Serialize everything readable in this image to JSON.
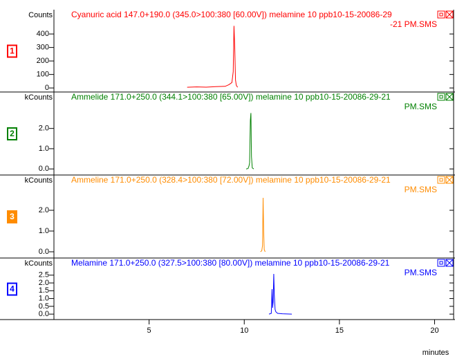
{
  "chart_data": [
    {
      "type": "line",
      "panel": "1",
      "title": [
        "Cyanuric acid 147.0+190.0 (345.0>100:380 [60.00V]) melamine 10 ppb10-15-20086-29",
        "-21 PM.SMS"
      ],
      "ylabel": "Counts",
      "xlim": [
        0,
        21
      ],
      "ylim": [
        -30,
        580
      ],
      "yticks": [
        0,
        100,
        200,
        300,
        400
      ],
      "series": [
        {
          "color": "#ff0000",
          "x": [
            7.0,
            7.5,
            8.0,
            8.5,
            9.0,
            9.2,
            9.35,
            9.42,
            9.46,
            9.5,
            9.54,
            9.58,
            9.65
          ],
          "values": [
            5,
            8,
            6,
            10,
            12,
            25,
            40,
            120,
            460,
            300,
            60,
            20,
            5
          ]
        }
      ]
    },
    {
      "type": "line",
      "panel": "2",
      "title": [
        "Ammelide 171.0+250.0 (344.1>100:380 [65.00V]) melamine 10 ppb10-15-20086-29-21",
        "PM.SMS"
      ],
      "ylabel": "kCounts",
      "xlim": [
        0,
        21
      ],
      "ylim": [
        -0.3,
        3.8
      ],
      "yticks": [
        {
          "value": 0,
          "label": "0.0"
        },
        {
          "value": 1,
          "label": "1.0"
        },
        {
          "value": 2,
          "label": "2.0"
        }
      ],
      "series": [
        {
          "color": "#008000",
          "x": [
            10.1,
            10.2,
            10.25,
            10.28,
            10.32,
            10.35,
            10.38,
            10.42,
            10.5
          ],
          "values": [
            0,
            0.02,
            0.15,
            0.3,
            2.4,
            2.76,
            0.6,
            0.05,
            0
          ]
        }
      ]
    },
    {
      "type": "line",
      "panel": "3",
      "title": [
        "Ammeline 171.0+250.0 (328.4>100:380 [72.00V]) melamine 10 ppb10-15-20086-29-21",
        "PM.SMS"
      ],
      "ylabel": "kCounts",
      "xlim": [
        0,
        21
      ],
      "ylim": [
        -0.3,
        3.7
      ],
      "yticks": [
        {
          "value": 0,
          "label": "0.0"
        },
        {
          "value": 1,
          "label": "1.0"
        },
        {
          "value": 2,
          "label": "2.0"
        }
      ],
      "series": [
        {
          "color": "#ff8c00",
          "x": [
            10.85,
            10.92,
            10.96,
            10.99,
            11.02,
            11.05,
            11.1
          ],
          "values": [
            0,
            0.05,
            0.3,
            2.6,
            1.0,
            0.1,
            0
          ]
        }
      ]
    },
    {
      "type": "line",
      "panel": "4",
      "title": [
        "Melamine 171.0+250.0 (327.5>100:380 [80.00V]) melamine 10 ppb10-15-20086-29-21",
        "PM.SMS"
      ],
      "ylabel": "kCounts",
      "xlim": [
        0,
        21
      ],
      "ylim": [
        -0.35,
        3.6
      ],
      "yticks": [
        {
          "value": 0,
          "label": "0.0"
        },
        0.5,
        {
          "value": 1,
          "label": "1.0"
        },
        1.5,
        {
          "value": 2,
          "label": "2.0"
        },
        2.5
      ],
      "xticks": [
        5,
        10,
        15,
        20
      ],
      "xlabel": "minutes",
      "series": [
        {
          "color": "#0000ff",
          "x": [
            11.3,
            11.42,
            11.46,
            11.49,
            11.52,
            11.55,
            11.58,
            11.62,
            11.66,
            11.75,
            12.0,
            12.5
          ],
          "values": [
            0,
            0.05,
            1.6,
            0.4,
            0.8,
            2.58,
            1.2,
            0.3,
            0.15,
            0.05,
            0.02,
            0
          ]
        }
      ]
    }
  ]
}
